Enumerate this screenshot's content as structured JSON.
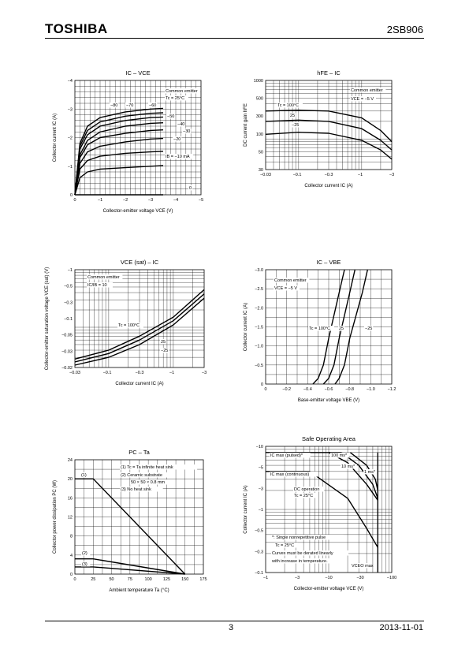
{
  "header": {
    "brand": "TOSHIBA",
    "part_number": "2SB906"
  },
  "footer": {
    "page": "3",
    "date": "2013-11-01"
  },
  "chart_data": [
    {
      "id": "ic_vce",
      "type": "line",
      "title": "IC – VCE",
      "xlabel": "Collector-emitter voltage   VCE   (V)",
      "ylabel": "Collector current   IC   (A)",
      "xlim": [
        0,
        -5
      ],
      "ylim": [
        0,
        -4
      ],
      "xticks": [
        "0",
        "−1",
        "−2",
        "−3",
        "−4",
        "−5"
      ],
      "yticks": [
        "0",
        "−1",
        "−2",
        "−3",
        "−4"
      ],
      "notes": [
        "Common emitter",
        "Tc = 25°C"
      ],
      "series": [
        {
          "name": "IB = −80 mA",
          "x": [
            0,
            -0.2,
            -0.5,
            -1,
            -2,
            -3,
            -3.5
          ],
          "y": [
            0,
            -1.8,
            -2.4,
            -2.7,
            -2.9,
            -3.0,
            -3.02
          ]
        },
        {
          "name": "IB = −70 mA",
          "x": [
            0,
            -0.2,
            -0.5,
            -1,
            -2,
            -3,
            -3.5
          ],
          "y": [
            0,
            -1.7,
            -2.25,
            -2.55,
            -2.75,
            -2.85,
            -2.87
          ]
        },
        {
          "name": "IB = −60 mA",
          "x": [
            0,
            -0.2,
            -0.5,
            -1,
            -2,
            -3,
            -3.5
          ],
          "y": [
            0,
            -1.6,
            -2.1,
            -2.4,
            -2.6,
            -2.7,
            -2.72
          ]
        },
        {
          "name": "IB = −50 mA",
          "x": [
            0,
            -0.2,
            -0.5,
            -1,
            -2,
            -3,
            -3.5
          ],
          "y": [
            0,
            -1.4,
            -1.9,
            -2.2,
            -2.4,
            -2.5,
            -2.52
          ]
        },
        {
          "name": "IB = −40 mA",
          "x": [
            0,
            -0.2,
            -0.5,
            -1,
            -2,
            -3,
            -3.5
          ],
          "y": [
            0,
            -1.3,
            -1.75,
            -2.0,
            -2.15,
            -2.25,
            -2.27
          ]
        },
        {
          "name": "IB = −30 mA",
          "x": [
            0,
            -0.2,
            -0.5,
            -1,
            -2,
            -3,
            -3.5
          ],
          "y": [
            0,
            -1.1,
            -1.5,
            -1.7,
            -1.85,
            -1.95,
            -1.97
          ]
        },
        {
          "name": "IB = −20 mA",
          "x": [
            0,
            -0.2,
            -0.5,
            -1,
            -2,
            -3,
            -3.5
          ],
          "y": [
            0,
            -0.9,
            -1.2,
            -1.35,
            -1.45,
            -1.5,
            -1.52
          ]
        },
        {
          "name": "IB = −10 mA",
          "x": [
            0,
            -0.2,
            -0.5,
            -1,
            -2,
            -3,
            -3.5
          ],
          "y": [
            0,
            -0.6,
            -0.8,
            -0.9,
            -0.95,
            -1.0,
            -1.02
          ]
        },
        {
          "name": "IB = 0",
          "x": [
            0,
            -3.5
          ],
          "y": [
            0,
            0
          ]
        }
      ],
      "curve_labels": [
        "−80",
        "−70",
        "−60",
        "−50",
        "−40",
        "−30",
        "−20",
        "IB = −10 mA",
        "0"
      ]
    },
    {
      "id": "hfe_ic",
      "type": "line",
      "title": "hFE – IC",
      "xlabel": "Collector current   IC   (A)",
      "ylabel": "DC current gain   hFE",
      "xscale": "log",
      "yscale": "log",
      "xlim": [
        -0.03,
        -3
      ],
      "ylim": [
        30,
        1000
      ],
      "xticks": [
        "−0.03",
        "−0.1",
        "−0.3",
        "−1",
        "−3"
      ],
      "yticks": [
        "30",
        "50",
        "100",
        "300",
        "500",
        "1000"
      ],
      "notes": [
        "Common emitter",
        "VCE = −5 V"
      ],
      "series": [
        {
          "name": "Tc = 100°C",
          "x": [
            -0.03,
            -0.1,
            -0.3,
            -1,
            -2,
            -3
          ],
          "y": [
            300,
            310,
            300,
            230,
            140,
            90
          ]
        },
        {
          "name": "25",
          "x": [
            -0.03,
            -0.1,
            -0.3,
            -1,
            -2,
            -3
          ],
          "y": [
            200,
            210,
            200,
            150,
            95,
            65
          ]
        },
        {
          "name": "−25",
          "x": [
            -0.03,
            -0.1,
            -0.3,
            -1,
            -2,
            -3
          ],
          "y": [
            120,
            130,
            125,
            95,
            65,
            45
          ]
        }
      ],
      "curve_labels": [
        "Tc = 100°C",
        "25",
        "−25"
      ]
    },
    {
      "id": "vcesat_ic",
      "type": "line",
      "title": "VCE (sat) – IC",
      "xlabel": "Collector current   IC   (A)",
      "ylabel": "Collector-emitter saturation voltage   VCE (sat)   (V)",
      "xscale": "log",
      "yscale": "log",
      "xlim": [
        -0.03,
        -3
      ],
      "ylim": [
        -0.02,
        -1
      ],
      "xticks": [
        "−0.03",
        "−0.1",
        "−0.3",
        "−1",
        "−3"
      ],
      "yticks": [
        "−0.02",
        "−0.03",
        "−0.05",
        "−0.1",
        "−0.3",
        "−0.5",
        "−1"
      ],
      "notes": [
        "Common emitter",
        "IC/IB = 10"
      ],
      "series": [
        {
          "name": "Tc = 100°C",
          "x": [
            -0.03,
            -0.1,
            -0.3,
            -1,
            -3
          ],
          "y": [
            -0.028,
            -0.04,
            -0.07,
            -0.15,
            -0.45
          ]
        },
        {
          "name": "25",
          "x": [
            -0.03,
            -0.1,
            -0.3,
            -1,
            -3
          ],
          "y": [
            -0.025,
            -0.035,
            -0.06,
            -0.13,
            -0.38
          ]
        },
        {
          "name": "−25",
          "x": [
            -0.03,
            -0.1,
            -0.3,
            -1,
            -3
          ],
          "y": [
            -0.022,
            -0.03,
            -0.05,
            -0.11,
            -0.32
          ]
        }
      ],
      "curve_labels": [
        "Tc = 100°C",
        "25",
        "−25"
      ]
    },
    {
      "id": "ic_vbe",
      "type": "line",
      "title": "IC – VBE",
      "xlabel": "Base-emitter voltage   VBE   (V)",
      "ylabel": "Collector current   IC   (A)",
      "xlim": [
        0,
        -1.2
      ],
      "ylim": [
        0,
        -3.0
      ],
      "xticks": [
        "0",
        "−0.2",
        "−0.4",
        "−0.6",
        "−0.8",
        "−1.0",
        "−1.2"
      ],
      "yticks": [
        "0",
        "−0.5",
        "−1.0",
        "−1.5",
        "−2.0",
        "−2.5",
        "−3.0"
      ],
      "notes": [
        "Common emitter",
        "VCE = −5 V"
      ],
      "series": [
        {
          "name": "Tc = 100°C",
          "x": [
            -0.45,
            -0.5,
            -0.55,
            -0.6,
            -0.7,
            -0.75
          ],
          "y": [
            0,
            -0.15,
            -0.5,
            -1.2,
            -2.4,
            -3.0
          ]
        },
        {
          "name": "25",
          "x": [
            -0.55,
            -0.6,
            -0.65,
            -0.7,
            -0.8,
            -0.85
          ],
          "y": [
            0,
            -0.15,
            -0.5,
            -1.2,
            -2.4,
            -3.0
          ]
        },
        {
          "name": "−25",
          "x": [
            -0.66,
            -0.7,
            -0.75,
            -0.8,
            -0.92,
            -0.97
          ],
          "y": [
            0,
            -0.15,
            -0.5,
            -1.2,
            -2.4,
            -3.0
          ]
        }
      ],
      "curve_labels": [
        "Tc = 100°C",
        "25",
        "−25"
      ]
    },
    {
      "id": "pc_ta",
      "type": "line",
      "title": "PC – Ta",
      "xlabel": "Ambient temperature   Ta   (°C)",
      "ylabel": "Collector power dissipation   PC   (W)",
      "xlim": [
        0,
        175
      ],
      "ylim": [
        0,
        24
      ],
      "xticks": [
        "0",
        "25",
        "50",
        "75",
        "100",
        "125",
        "150",
        "175"
      ],
      "yticks": [
        "0",
        "4",
        "8",
        "12",
        "16",
        "20",
        "24"
      ],
      "notes": [
        "(1)  Tc = Ta infinite heat sink",
        "(2)  Ceramic substrate",
        "50 × 50 × 0.8 mm",
        "(3)  No heat sink"
      ],
      "series": [
        {
          "name": "(1)",
          "x": [
            0,
            25,
            150
          ],
          "y": [
            20,
            20,
            0
          ]
        },
        {
          "name": "(2)",
          "x": [
            0,
            25,
            150
          ],
          "y": [
            3.2,
            3.2,
            0
          ]
        },
        {
          "name": "(3)",
          "x": [
            0,
            25,
            150
          ],
          "y": [
            1.5,
            1.5,
            0
          ]
        }
      ],
      "curve_labels": [
        "(1)",
        "(2)",
        "(3)"
      ]
    },
    {
      "id": "soa",
      "type": "line",
      "title": "Safe Operating Area",
      "xlabel": "Collector-emitter voltage   VCE   (V)",
      "ylabel": "Collector current   IC   (A)",
      "xscale": "log",
      "yscale": "log",
      "xlim": [
        -1,
        -100
      ],
      "ylim": [
        -0.1,
        -10
      ],
      "xticks": [
        "−1",
        "−3",
        "−10",
        "−30",
        "−100"
      ],
      "yticks": [
        "−0.1",
        "−0.3",
        "−0.5",
        "−1",
        "−3",
        "−5",
        "−10"
      ],
      "notes": [
        "*: Single nonrepetitive pulse",
        "Tc = 25°C",
        "Curves must be derated linearly",
        "with increase in temperature."
      ],
      "series": [
        {
          "name": "IC max (pulsed)*",
          "x": [
            -1,
            -10,
            -16
          ],
          "y": [
            -8,
            -8,
            -8
          ]
        },
        {
          "name": "100 ms*",
          "x": [
            -10,
            -20,
            -40,
            -60
          ],
          "y": [
            -8,
            -5.5,
            -2.5,
            -1.4
          ]
        },
        {
          "name": "10 ms*",
          "x": [
            -16,
            -30,
            -50,
            -60
          ],
          "y": [
            -8,
            -5,
            -2.5,
            -1.5
          ]
        },
        {
          "name": "1 ms*",
          "x": [
            -22,
            -40,
            -55,
            -60
          ],
          "y": [
            -8,
            -5,
            -3,
            -2
          ]
        },
        {
          "name": "DC operation Tc = 25°C",
          "x": [
            -1,
            -5,
            -20,
            -40,
            -60
          ],
          "y": [
            -4,
            -4,
            -1.5,
            -0.5,
            -0.25
          ]
        },
        {
          "name": "VCEO max",
          "x": [
            -60,
            -60
          ],
          "y": [
            -0.1,
            -8
          ]
        }
      ],
      "curve_labels": [
        "IC max (pulsed)*",
        "IC max (continuous)",
        "100 ms*",
        "10 ms*",
        "1 ms*",
        "DC operation",
        "Tc = 25°C",
        "VCEO max"
      ]
    }
  ]
}
